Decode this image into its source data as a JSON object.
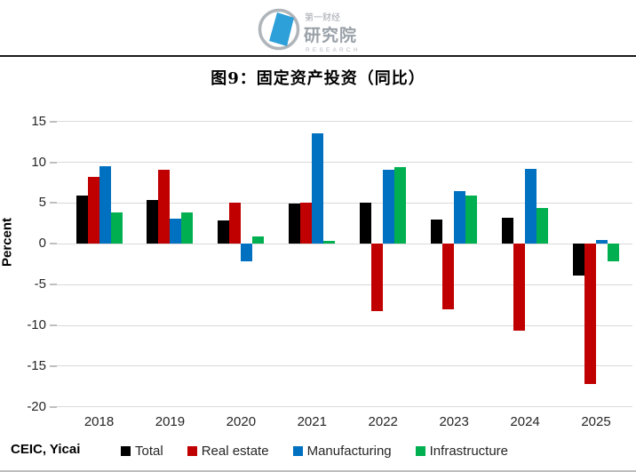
{
  "header": {
    "logo": {
      "top_text": "第一财经",
      "main_text": "研究院",
      "sub_text": "RESEARCH"
    }
  },
  "title": "图9：固定资产投资（同比）",
  "source": "CEIC, Yicai",
  "colors": {
    "total": "#000000",
    "real_estate": "#C00000",
    "manufacturing": "#0070C0",
    "infrastructure": "#00B050",
    "gridline": "#D9D9D9",
    "logo_blue": "#2D9FD9",
    "logo_gray": "#A3A9B0"
  },
  "chart_data": {
    "type": "bar",
    "title": "图9：固定资产投资（同比）",
    "xlabel": "",
    "ylabel": "Percent",
    "ylim": [
      -20,
      15
    ],
    "yticks": [
      15,
      10,
      5,
      0,
      -5,
      -10,
      -15,
      -20
    ],
    "grid": true,
    "legend_position": "bottom",
    "categories": [
      "2018",
      "2019",
      "2020",
      "2021",
      "2022",
      "2023",
      "2024",
      "2025"
    ],
    "series": [
      {
        "name": "Total",
        "color": "#000000",
        "values": [
          5.9,
          5.4,
          2.9,
          4.9,
          5.1,
          3.0,
          3.2,
          -3.9
        ]
      },
      {
        "name": "Real estate",
        "color": "#C00000",
        "values": [
          8.2,
          9.1,
          5.0,
          5.0,
          -8.3,
          -8.0,
          -10.7,
          -17.2
        ]
      },
      {
        "name": "Manufacturing",
        "color": "#0070C0",
        "values": [
          9.5,
          3.1,
          -2.2,
          13.5,
          9.1,
          6.5,
          9.2,
          0.5
        ]
      },
      {
        "name": "Infrastructure",
        "color": "#00B050",
        "values": [
          3.8,
          3.8,
          0.9,
          0.4,
          9.4,
          5.9,
          4.4,
          -2.2
        ]
      }
    ]
  }
}
